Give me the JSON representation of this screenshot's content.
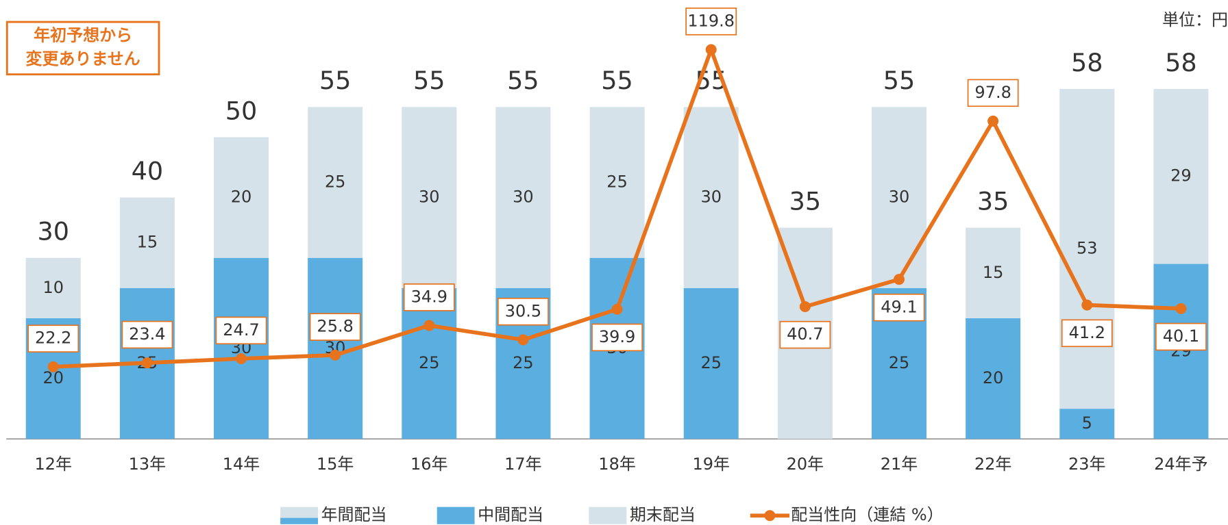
{
  "chart_data": {
    "type": "bar",
    "unit_label": "単位：円",
    "annotation": "年初予想から\n変更ありません",
    "categories": [
      "12年",
      "13年",
      "14年",
      "15年",
      "16年",
      "17年",
      "18年",
      "19年",
      "20年",
      "21年",
      "22年",
      "23年",
      "24年予"
    ],
    "series": [
      {
        "name": "年間配当",
        "role": "total",
        "color": "#d5e2ea",
        "values": [
          30,
          40,
          50,
          55,
          55,
          55,
          55,
          55,
          35,
          55,
          35,
          58,
          58
        ]
      },
      {
        "name": "中間配当",
        "color": "#5aafe0",
        "values": [
          20,
          25,
          30,
          30,
          25,
          25,
          30,
          25,
          0,
          25,
          20,
          5,
          29
        ]
      },
      {
        "name": "期末配当",
        "color": "#d5e2ea",
        "values": [
          10,
          15,
          20,
          25,
          30,
          30,
          25,
          30,
          35,
          30,
          15,
          53,
          29
        ]
      },
      {
        "name": "配当性向（連結 %）",
        "type": "line",
        "axis": "y2",
        "color": "#e8731d",
        "values": [
          22.2,
          23.4,
          24.7,
          25.8,
          34.9,
          30.5,
          39.9,
          119.8,
          40.7,
          49.1,
          97.8,
          41.2,
          40.1
        ]
      }
    ],
    "ylim": [
      0,
      70
    ],
    "y2lim": [
      0,
      130
    ],
    "stacked": true
  }
}
